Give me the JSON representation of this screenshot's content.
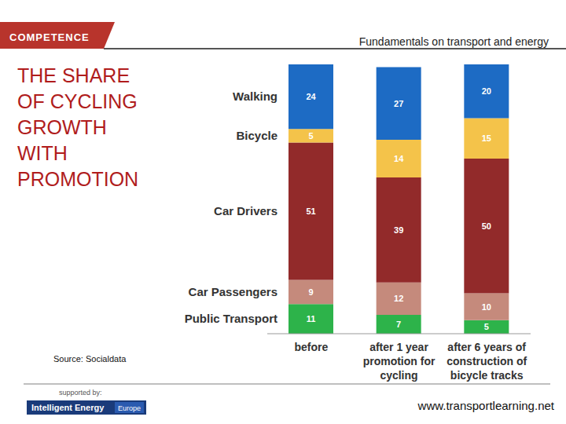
{
  "chart_data": {
    "type": "bar",
    "stacked": true,
    "title": "THE SHARE OF CYCLING GROWTH WITH PROMOTION",
    "annotations": [
      "COMPETENCE",
      "Fundamentals on transport and energy",
      "Source: Socialdata",
      "supported by:",
      "Intelligent Energy",
      "Europe",
      "www.transportlearning.net"
    ],
    "categories": [
      "before",
      "after 1 year promotion for cycling",
      "after 6 years of construction of bicycle tracks"
    ],
    "series": [
      {
        "name": "Walking",
        "color": "#1d6bc4",
        "values": [
          24,
          27,
          20
        ]
      },
      {
        "name": "Bicycle",
        "color": "#f4c34a",
        "values": [
          5,
          14,
          15
        ]
      },
      {
        "name": "Car Drivers",
        "color": "#922a2a",
        "values": [
          51,
          39,
          50
        ]
      },
      {
        "name": "Car Passengers",
        "color": "#c58a7c",
        "values": [
          9,
          12,
          10
        ]
      },
      {
        "name": "Public Transport",
        "color": "#2db34a",
        "values": [
          11,
          7,
          5
        ]
      }
    ],
    "ylim": [
      0,
      100
    ],
    "grid": false,
    "data_labels": true,
    "tick_labels": "x"
  }
}
